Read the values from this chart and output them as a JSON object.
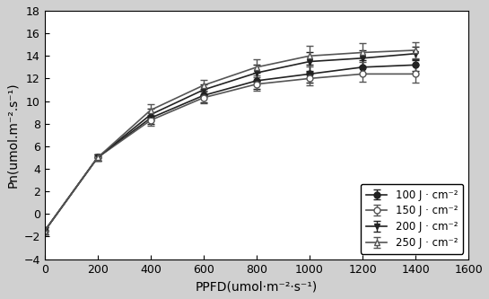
{
  "ppfd": [
    0,
    200,
    400,
    600,
    800,
    1000,
    1200,
    1400
  ],
  "series": [
    {
      "label": "100 J · cm⁻²",
      "y": [
        -1.5,
        5.0,
        8.5,
        10.5,
        11.8,
        12.4,
        13.0,
        13.2
      ],
      "yerr": [
        0.3,
        0.3,
        0.5,
        0.6,
        0.7,
        0.8,
        0.6,
        0.5
      ],
      "marker": "o",
      "fillstyle": "full",
      "color": "#222222"
    },
    {
      "label": "150 J · cm⁻²",
      "y": [
        -1.5,
        5.0,
        8.3,
        10.3,
        11.5,
        12.0,
        12.4,
        12.4
      ],
      "yerr": [
        0.3,
        0.3,
        0.5,
        0.5,
        0.6,
        0.6,
        0.7,
        0.8
      ],
      "marker": "o",
      "fillstyle": "none",
      "color": "#555555"
    },
    {
      "label": "200 J · cm⁻²",
      "y": [
        -1.5,
        5.0,
        8.8,
        11.0,
        12.5,
        13.5,
        13.8,
        14.2
      ],
      "yerr": [
        0.3,
        0.3,
        0.5,
        0.5,
        0.7,
        0.8,
        0.7,
        0.6
      ],
      "marker": "v",
      "fillstyle": "full",
      "color": "#222222"
    },
    {
      "label": "250 J · cm⁻²",
      "y": [
        -1.5,
        5.0,
        9.2,
        11.4,
        13.0,
        14.0,
        14.3,
        14.5
      ],
      "yerr": [
        0.3,
        0.3,
        0.5,
        0.5,
        0.7,
        0.9,
        0.8,
        0.7
      ],
      "marker": "^",
      "fillstyle": "none",
      "color": "#555555"
    }
  ],
  "xlabel": "PPFD(umol·m⁻²·s⁻¹)",
  "ylabel": "Pn(umol.m⁻².s⁻¹)",
  "xlim": [
    0,
    1600
  ],
  "ylim": [
    -4,
    18
  ],
  "xticks": [
    0,
    200,
    400,
    600,
    800,
    1000,
    1200,
    1400,
    1600
  ],
  "yticks": [
    -4,
    -2,
    0,
    2,
    4,
    6,
    8,
    10,
    12,
    14,
    16,
    18
  ],
  "background_color": "#d0d0d0",
  "plot_background": "#ffffff"
}
